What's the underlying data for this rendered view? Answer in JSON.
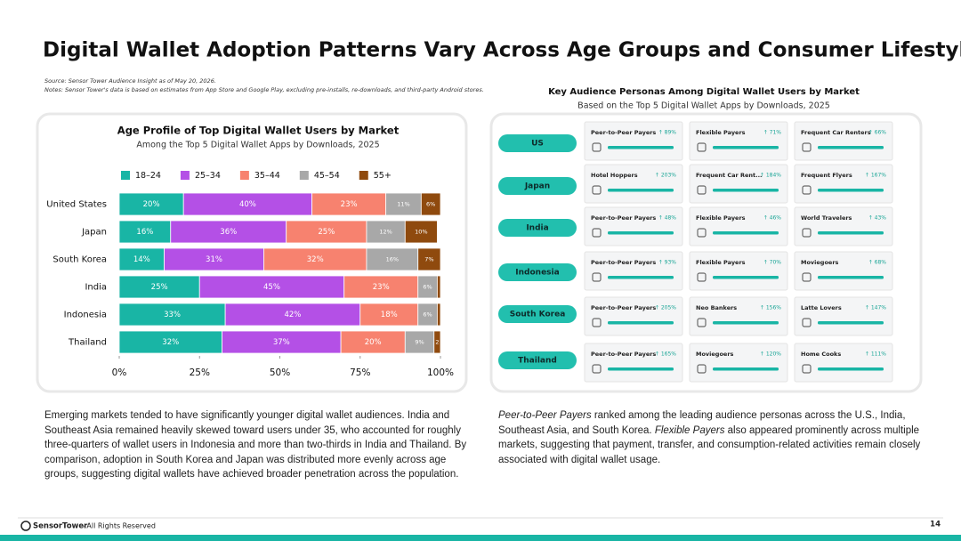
{
  "header": {
    "title": "Digital Wallet Adoption Patterns Vary Across Age Groups and Consumer Lifestyles",
    "source": "Source: Sensor Tower Audience Insight as of May 20, 2026.",
    "notes": "Notes: Sensor Tower's data is based on estimates from App Store and Google Play, excluding pre-installs, re-downloads, and third-party Android stores."
  },
  "chart_data": {
    "type": "bar",
    "orientation": "horizontal",
    "stacked": true,
    "title": "Age Profile of Top Digital Wallet Users by Market",
    "subtitle": "Among the Top 5 Digital Wallet Apps by Downloads, 2025",
    "categories": [
      "United States",
      "Japan",
      "South Korea",
      "India",
      "Indonesia",
      "Thailand"
    ],
    "series": [
      {
        "name": "18–24",
        "color": "#19b5a5",
        "values": [
          20,
          16,
          14,
          25,
          33,
          32
        ],
        "value_labels": [
          "20%",
          "16%",
          "14%",
          "25%",
          "33%",
          "32%"
        ]
      },
      {
        "name": "25–34",
        "color": "#b450e6",
        "values": [
          40,
          36,
          31,
          45,
          42,
          37
        ],
        "value_labels": [
          "40%",
          "36%",
          "31%",
          "45%",
          "42%",
          "37%"
        ]
      },
      {
        "name": "35–44",
        "color": "#f7826f",
        "values": [
          23,
          25,
          32,
          23,
          18,
          20
        ],
        "value_labels": [
          "23%",
          "25%",
          "32%",
          "23%",
          "18%",
          "20%"
        ]
      },
      {
        "name": "45–54",
        "color": "#a8a8a8",
        "values": [
          11,
          12,
          16,
          6,
          6,
          9
        ],
        "value_labels": [
          "11%",
          "12%",
          "16%",
          "6%",
          "6%",
          "9%"
        ]
      },
      {
        "name": "55+",
        "color": "#8f4a0e",
        "values": [
          6,
          10,
          7,
          1,
          1,
          2
        ],
        "value_labels": [
          "6%",
          "10%",
          "7%",
          null,
          null,
          "2"
        ]
      }
    ],
    "xlim": [
      0,
      100
    ],
    "xticks": [
      {
        "value": 0,
        "label": "0%"
      },
      {
        "value": 25,
        "label": "25%"
      },
      {
        "value": 50,
        "label": "50%"
      },
      {
        "value": 75,
        "label": "75%"
      },
      {
        "value": 100,
        "label": "100%"
      }
    ],
    "legend": "top"
  },
  "personas": {
    "title": "Key Audience Personas Among Digital Wallet Users by Market",
    "subtitle": "Based on the Top 5 Digital Wallet Apps by Downloads, 2025",
    "markets": [
      {
        "name": "US",
        "items": [
          {
            "name": "Peer-to-Peer Payers",
            "growth": "↑ 89%"
          },
          {
            "name": "Flexible Payers",
            "growth": "↑ 71%"
          },
          {
            "name": "Frequent Car Renters",
            "growth": "↑ 66%"
          }
        ]
      },
      {
        "name": "Japan",
        "items": [
          {
            "name": "Hotel Hoppers",
            "growth": "↑ 203%"
          },
          {
            "name": "Frequent Car Rent...",
            "growth": "↑ 184%"
          },
          {
            "name": "Frequent Flyers",
            "growth": "↑ 167%"
          }
        ]
      },
      {
        "name": "India",
        "items": [
          {
            "name": "Peer-to-Peer Payers",
            "growth": "↑ 48%"
          },
          {
            "name": "Flexible Payers",
            "growth": "↑ 46%"
          },
          {
            "name": "World Travelers",
            "growth": "↑ 43%"
          }
        ]
      },
      {
        "name": "Indonesia",
        "items": [
          {
            "name": "Peer-to-Peer Payers",
            "growth": "↑ 93%"
          },
          {
            "name": "Flexible Payers",
            "growth": "↑ 70%"
          },
          {
            "name": "Moviegoers",
            "growth": "↑ 68%"
          }
        ]
      },
      {
        "name": "South Korea",
        "items": [
          {
            "name": "Peer-to-Peer Payers",
            "growth": "↑ 205%"
          },
          {
            "name": "Neo Bankers",
            "growth": "↑ 156%"
          },
          {
            "name": "Latte Lovers",
            "growth": "↑ 147%"
          }
        ]
      },
      {
        "name": "Thailand",
        "items": [
          {
            "name": "Peer-to-Peer Payers",
            "growth": "↑ 165%"
          },
          {
            "name": "Moviegoers",
            "growth": "↑ 120%"
          },
          {
            "name": "Home Cooks",
            "growth": "↑ 111%"
          }
        ]
      }
    ]
  },
  "left_text": "Emerging markets tended to have significantly younger digital wallet audiences. India and Southeast Asia remained heavily skewed toward users under 35, who accounted for roughly three-quarters of wallet users in Indonesia and more than two-thirds in India and Thailand. By comparison, adoption in South Korea and Japan was distributed more evenly across age groups, suggesting digital wallets have achieved broader penetration across the population.",
  "right_text": [
    "Peer-to-Peer Payers",
    " ranked among the leading audience personas across the U.S., India, Southeast Asia, and South Korea. ",
    "Flexible Payers",
    " also appeared prominently across multiple markets, suggesting that payment, transfer, and consumption-related activities remain closely associated with digital wallet usage."
  ],
  "footer": {
    "brand": "SensorTower",
    "rights": "- All Rights Reserved",
    "page": "14"
  }
}
